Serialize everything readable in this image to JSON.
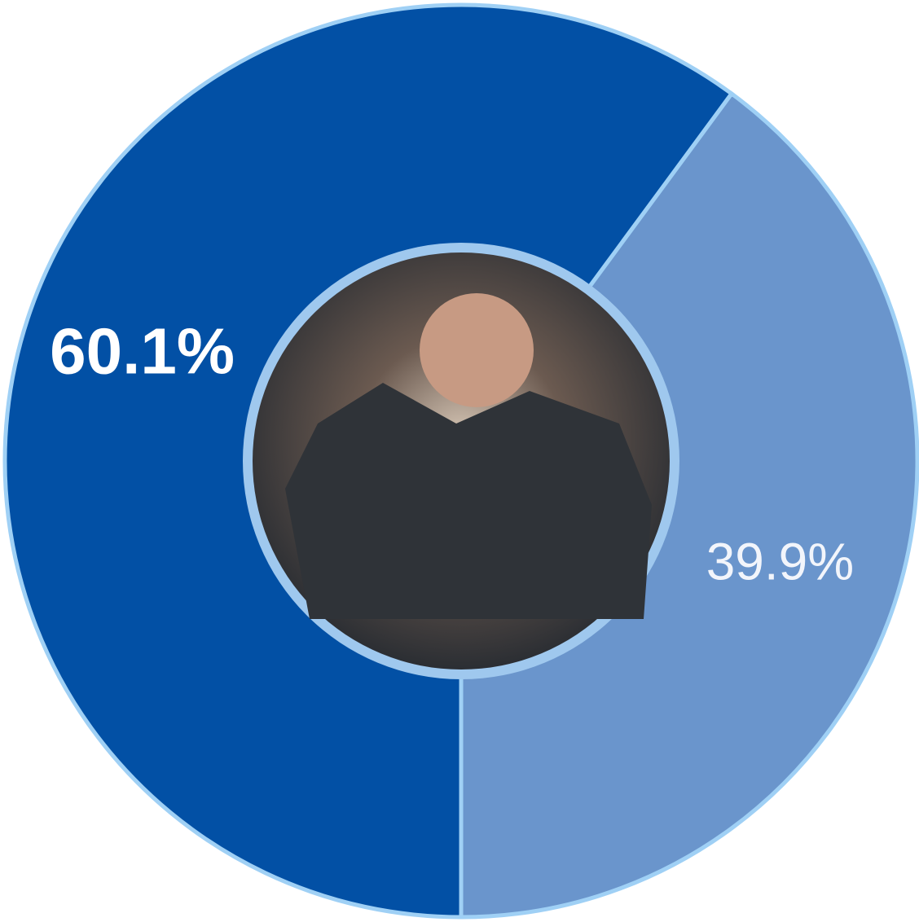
{
  "chart_data": {
    "type": "donut",
    "values": [
      60.1,
      39.9
    ],
    "value_labels": [
      "60.1%",
      "39.9%"
    ],
    "colors": [
      "#0250a5",
      "#6a95cc"
    ]
  }
}
